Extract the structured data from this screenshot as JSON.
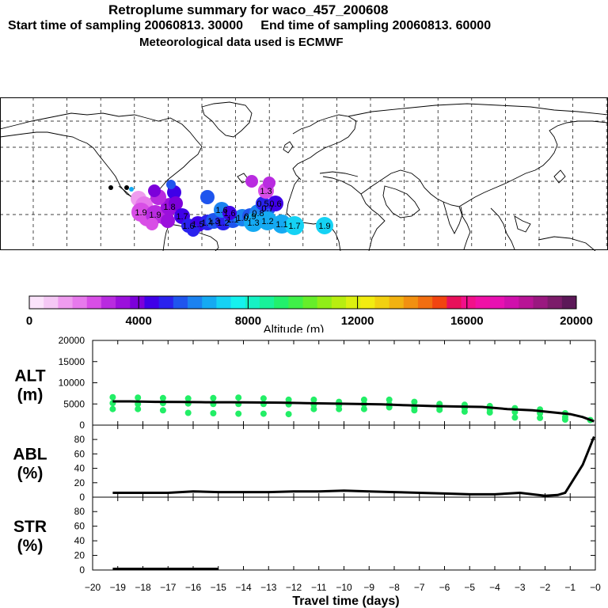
{
  "header": {
    "title": "Retroplume summary for waco_457_200608",
    "start_label": "Start time of sampling 20060813. 30000",
    "end_label": "End time of sampling 20060813. 60000",
    "met_label": "Meteorological data used is ECMWF"
  },
  "map": {
    "plume_labels": [
      "1.9",
      "1.9",
      "1.8",
      "1.7",
      "1.6",
      "1.5",
      "1.4",
      "1.3",
      "1.2",
      "1.1",
      "1.0",
      "0.9",
      "0.8",
      "0.7",
      "0.6",
      "0.5",
      "1.6",
      "1.3",
      "1.2",
      "1.1",
      "1.7",
      "1.9",
      "1.3",
      "1.6"
    ],
    "colors": {
      "land_line": "#000000",
      "grid": "#000000"
    }
  },
  "colorbar": {
    "colors": [
      "#fbe3fb",
      "#f5c8f5",
      "#ef9cef",
      "#e779ec",
      "#d84ee6",
      "#b92be0",
      "#9b10dc",
      "#7c00da",
      "#3f00e8",
      "#2a22ee",
      "#1f55ee",
      "#1b82f0",
      "#15aaf2",
      "#15d2f4",
      "#15f2ee",
      "#15f2c4",
      "#18f29a",
      "#22f06c",
      "#3ff048",
      "#66ee2a",
      "#90ee18",
      "#b8ee10",
      "#dcf010",
      "#f2ec10",
      "#f2d010",
      "#f2b210",
      "#f29010",
      "#f26e10",
      "#f24410",
      "#e8105a",
      "#f2108a",
      "#f010a6",
      "#e810b2",
      "#d010ac",
      "#b81496",
      "#9a1880",
      "#7c1c6a",
      "#5c1858"
    ],
    "tick_labels": [
      "0",
      "4000",
      "8000",
      "12000",
      "16000",
      "20000"
    ],
    "title": "Altitude (m)"
  },
  "chart_data": [
    {
      "type": "line",
      "name": "ALT",
      "ylabel": "ALT\n(m)",
      "ylim": [
        0,
        20000
      ],
      "yticks": [
        "0",
        "5000",
        "10000",
        "15000",
        "20000"
      ],
      "xlim": [
        -20,
        0
      ],
      "x": [
        -19.2,
        -18.5,
        -17.5,
        -16.5,
        -15.5,
        -14.5,
        -13.5,
        -12.5,
        -11.5,
        -10.5,
        -9.5,
        -8.5,
        -7.5,
        -6.5,
        -5.5,
        -4.5,
        -3.5,
        -2.5,
        -2,
        -1.5,
        -1,
        -0.5,
        -0.05
      ],
      "values": [
        5600,
        5600,
        5500,
        5450,
        5400,
        5400,
        5350,
        5300,
        5200,
        5100,
        5000,
        4900,
        4700,
        4500,
        4400,
        4300,
        3800,
        3500,
        3200,
        2900,
        2600,
        1900,
        900
      ],
      "scatter": {
        "color": "#22ee66",
        "points": [
          [
            -19.2,
            6600
          ],
          [
            -19.2,
            5200
          ],
          [
            -19.2,
            3800
          ],
          [
            -18.2,
            6500
          ],
          [
            -18.2,
            5000
          ],
          [
            -18.2,
            3800
          ],
          [
            -17.2,
            6400
          ],
          [
            -17.2,
            5200
          ],
          [
            -17.2,
            3500
          ],
          [
            -16.2,
            6300
          ],
          [
            -16.2,
            5100
          ],
          [
            -16.2,
            2900
          ],
          [
            -15.2,
            6400
          ],
          [
            -15.2,
            5000
          ],
          [
            -15.2,
            2800
          ],
          [
            -14.2,
            6500
          ],
          [
            -14.2,
            5000
          ],
          [
            -14.2,
            2700
          ],
          [
            -13.2,
            6300
          ],
          [
            -13.2,
            5000
          ],
          [
            -13.2,
            2700
          ],
          [
            -12.2,
            6000
          ],
          [
            -12.2,
            4900
          ],
          [
            -12.2,
            2600
          ],
          [
            -11.2,
            6000
          ],
          [
            -11.2,
            4800
          ],
          [
            -11.2,
            3800
          ],
          [
            -10.2,
            5500
          ],
          [
            -10.2,
            4700
          ],
          [
            -10.2,
            3800
          ],
          [
            -9.2,
            6000
          ],
          [
            -9.2,
            5000
          ],
          [
            -9.2,
            3800
          ],
          [
            -8.2,
            6000
          ],
          [
            -8.2,
            4900
          ],
          [
            -8.2,
            4200
          ],
          [
            -7.2,
            5500
          ],
          [
            -7.2,
            4200
          ],
          [
            -7.2,
            3500
          ],
          [
            -6.2,
            5000
          ],
          [
            -6.2,
            4200
          ],
          [
            -6.2,
            3600
          ],
          [
            -5.2,
            4800
          ],
          [
            -5.2,
            4000
          ],
          [
            -5.2,
            3200
          ],
          [
            -4.2,
            4500
          ],
          [
            -4.2,
            3800
          ],
          [
            -4.2,
            3000
          ],
          [
            -3.2,
            4000
          ],
          [
            -3.2,
            3100
          ],
          [
            -3.2,
            1800
          ],
          [
            -2.2,
            3700
          ],
          [
            -2.2,
            2800
          ],
          [
            -2.2,
            1700
          ],
          [
            -1.2,
            2800
          ],
          [
            -1.2,
            1900
          ],
          [
            -1.2,
            1300
          ],
          [
            -0.2,
            1200
          ]
        ]
      }
    },
    {
      "type": "line",
      "name": "ABL",
      "ylabel": "ABL\n(%)",
      "ylim": [
        0,
        90
      ],
      "yticks": [
        "0",
        "20",
        "40",
        "60",
        "80"
      ],
      "xlim": [
        -20,
        0
      ],
      "x": [
        -19.2,
        -18,
        -17,
        -16,
        -15,
        -14,
        -13,
        -12,
        -11,
        -10,
        -9,
        -8,
        -7,
        -6,
        -5,
        -4,
        -3,
        -2.5,
        -2,
        -1.5,
        -1.2,
        -0.5,
        -0.05
      ],
      "values": [
        6,
        6,
        6,
        8,
        7,
        7,
        7,
        8,
        8,
        9,
        8,
        7,
        6,
        5,
        4,
        4,
        6,
        4,
        2,
        3,
        6,
        45,
        84
      ]
    },
    {
      "type": "line",
      "name": "STR",
      "ylabel": "STR\n(%)",
      "ylim": [
        0,
        90
      ],
      "yticks": [
        "0",
        "20",
        "40",
        "60",
        "80"
      ],
      "xlim": [
        -20,
        0
      ],
      "x": [
        -19.2,
        -15
      ],
      "values": [
        1.5,
        1.5
      ],
      "xlabel": "Travel time (days)",
      "xticks": [
        "−20",
        "−19",
        "−18",
        "−17",
        "−16",
        "−15",
        "−14",
        "−13",
        "−12",
        "−11",
        "−10",
        "−9",
        "−8",
        "−7",
        "−6",
        "−5",
        "−4",
        "−3",
        "−2",
        "−1",
        "−0"
      ]
    }
  ]
}
